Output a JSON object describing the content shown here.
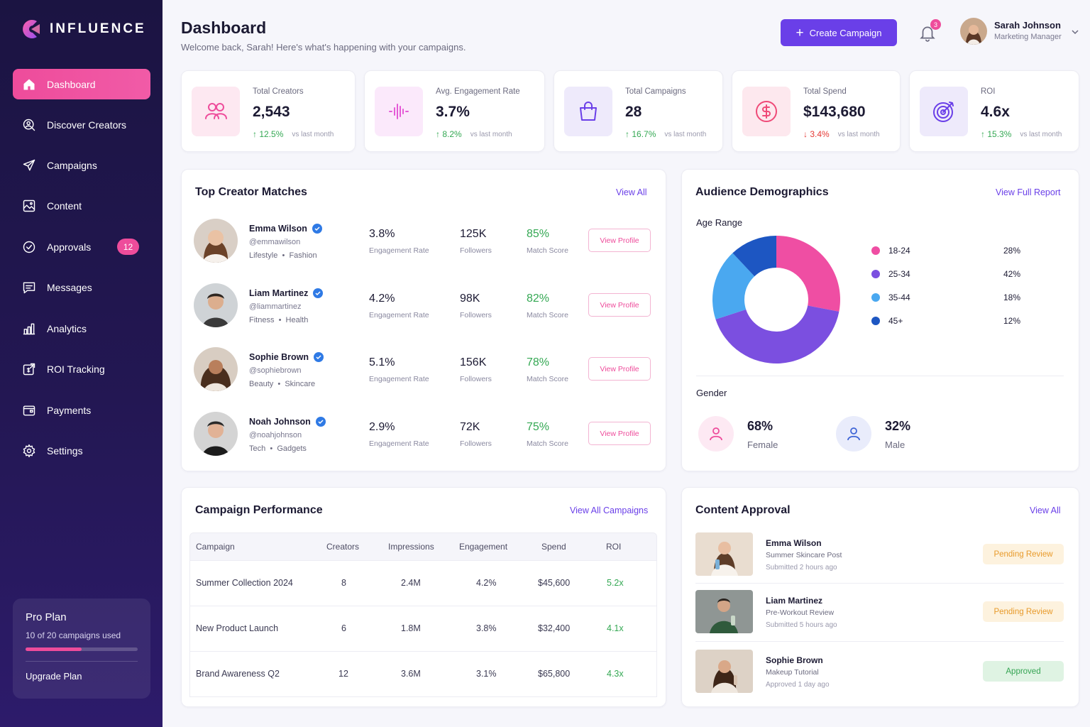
{
  "app": {
    "brand": "INFLUENCE"
  },
  "sidebar": {
    "items": [
      {
        "label": "Dashboard",
        "icon": "home-icon",
        "active": true
      },
      {
        "label": "Discover Creators",
        "icon": "search-user-icon"
      },
      {
        "label": "Campaigns",
        "icon": "paper-plane-icon"
      },
      {
        "label": "Content",
        "icon": "image-icon"
      },
      {
        "label": "Approvals",
        "icon": "check-circle-icon",
        "badge": "12"
      },
      {
        "label": "Messages",
        "icon": "message-icon"
      },
      {
        "label": "Analytics",
        "icon": "bar-chart-icon"
      },
      {
        "label": "ROI Tracking",
        "icon": "roi-icon"
      },
      {
        "label": "Payments",
        "icon": "wallet-icon"
      },
      {
        "label": "Settings",
        "icon": "gear-icon"
      }
    ],
    "plan": {
      "title": "Pro Plan",
      "usage": "10 of 20 campaigns used",
      "used_fraction": 0.5,
      "upgrade_label": "Upgrade Plan"
    }
  },
  "header": {
    "title": "Dashboard",
    "subtitle": "Welcome back, Sarah! Here's what's happening with your campaigns.",
    "create_label": "Create Campaign",
    "notification_count": "3",
    "user": {
      "name": "Sarah Johnson",
      "role": "Marketing Manager"
    }
  },
  "stats": [
    {
      "label": "Total Creators",
      "value": "2,543",
      "change": "12.5%",
      "direction": "up",
      "vs": "vs last month",
      "icon": "users-icon"
    },
    {
      "label": "Avg. Engagement Rate",
      "value": "3.7%",
      "change": "8.2%",
      "direction": "up",
      "vs": "vs last month",
      "icon": "waveform-icon"
    },
    {
      "label": "Total Campaigns",
      "value": "28",
      "change": "16.7%",
      "direction": "up",
      "vs": "vs last month",
      "icon": "shopping-bag-icon"
    },
    {
      "label": "Total Spend",
      "value": "$143,680",
      "change": "3.4%",
      "direction": "down",
      "vs": "vs last month",
      "icon": "dollar-icon"
    },
    {
      "label": "ROI",
      "value": "4.6x",
      "change": "15.3%",
      "direction": "up",
      "vs": "vs last month",
      "icon": "target-icon"
    }
  ],
  "top_creators": {
    "title": "Top Creator Matches",
    "view_all": "View All",
    "engagement_label": "Engagement Rate",
    "followers_label": "Followers",
    "match_label": "Match Score",
    "button_label": "View Profile",
    "rows": [
      {
        "name": "Emma Wilson",
        "handle": "@emmawilson",
        "tag1": "Lifestyle",
        "tag2": "Fashion",
        "engagement": "3.8%",
        "followers": "125K",
        "match": "85%"
      },
      {
        "name": "Liam Martinez",
        "handle": "@liammartinez",
        "tag1": "Fitness",
        "tag2": "Health",
        "engagement": "4.2%",
        "followers": "98K",
        "match": "82%"
      },
      {
        "name": "Sophie Brown",
        "handle": "@sophiebrown",
        "tag1": "Beauty",
        "tag2": "Skincare",
        "engagement": "5.1%",
        "followers": "156K",
        "match": "78%"
      },
      {
        "name": "Noah Johnson",
        "handle": "@noahjohnson",
        "tag1": "Tech",
        "tag2": "Gadgets",
        "engagement": "2.9%",
        "followers": "72K",
        "match": "75%"
      }
    ]
  },
  "demographics": {
    "title": "Audience Demographics",
    "link": "View Full Report",
    "age_label": "Age Range",
    "gender_label": "Gender",
    "female": {
      "value": "68%",
      "label": "Female"
    },
    "male": {
      "value": "32%",
      "label": "Male"
    }
  },
  "chart_data": {
    "type": "pie",
    "title": "Age Range",
    "categories": [
      "18-24",
      "25-34",
      "35-44",
      "45+"
    ],
    "values": [
      28,
      42,
      18,
      12
    ],
    "labels": [
      "28%",
      "42%",
      "18%",
      "12%"
    ],
    "colors": [
      "#ef4ea3",
      "#7b4fe0",
      "#4aa8f0",
      "#1d56c2"
    ],
    "donut": true
  },
  "campaign_performance": {
    "title": "Campaign Performance",
    "link": "View All Campaigns",
    "columns": [
      "Campaign",
      "Creators",
      "Impressions",
      "Engagement",
      "Spend",
      "ROI"
    ],
    "rows": [
      [
        "Summer Collection 2024",
        "8",
        "2.4M",
        "4.2%",
        "$45,600",
        "5.2x"
      ],
      [
        "New Product Launch",
        "6",
        "1.8M",
        "3.8%",
        "$32,400",
        "4.1x"
      ],
      [
        "Brand Awareness Q2",
        "12",
        "3.6M",
        "3.1%",
        "$65,800",
        "4.3x"
      ]
    ]
  },
  "content_approval": {
    "title": "Content Approval",
    "link": "View All",
    "rows": [
      {
        "name": "Emma Wilson",
        "title": "Summer Skincare Post",
        "time": "Submitted 2 hours ago",
        "status": "Pending Review"
      },
      {
        "name": "Liam Martinez",
        "title": "Pre-Workout Review",
        "time": "Submitted 5 hours ago",
        "status": "Pending Review"
      },
      {
        "name": "Sophie Brown",
        "title": "Makeup Tutorial",
        "time": "Approved 1 day ago",
        "status": "Approved"
      }
    ]
  },
  "colors": {
    "accent": "#6a3fe8",
    "brand_pink": "#ee4c9b",
    "positive": "#34a853",
    "negative": "#e53935"
  }
}
